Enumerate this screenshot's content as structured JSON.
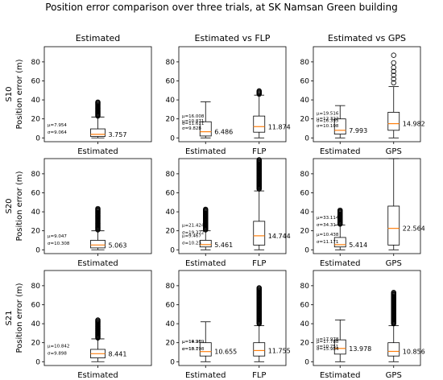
{
  "title": "Position error comparison over three trials, at SK Namsan Green building",
  "columns": [
    "Estimated",
    "Estimated vs FLP",
    "Estimated vs GPS"
  ],
  "rows": [
    "S10",
    "S20",
    "S21"
  ],
  "ylabel": "Position error (m)",
  "yticks": [
    0,
    20,
    40,
    60,
    80
  ],
  "colors": {
    "median": "#ff7f0e",
    "box": "#000000",
    "flier": "#000000"
  },
  "chart_data": [
    {
      "type": "box",
      "row": "S10",
      "panel": "Estimated",
      "ylim": [
        -4,
        96
      ],
      "boxes": [
        {
          "label": "Estimated",
          "q1": 1.5,
          "median": 3.757,
          "q3": 9.5,
          "whisker_low": 0,
          "whisker_high": 22,
          "fliers_dense": [
            23,
            38
          ],
          "fliers": [],
          "annotations": {
            "mu": "μ=7.954",
            "sigma": "σ=9.064",
            "median": "3.757"
          }
        }
      ]
    },
    {
      "type": "box",
      "row": "S10",
      "panel": "Estimated vs FLP",
      "ylim": [
        -4,
        96
      ],
      "boxes": [
        {
          "label": "Estimated",
          "q1": 2,
          "median": 6.486,
          "q3": 17,
          "whisker_low": 0,
          "whisker_high": 38,
          "fliers_dense": null,
          "fliers": [],
          "annotations": {
            "mu": "μ=10.871",
            "sigma": "σ=9.828",
            "median": "6.486"
          }
        },
        {
          "label": "FLP",
          "q1": 6,
          "median": 11.874,
          "q3": 23,
          "whisker_low": 0,
          "whisker_high": 45,
          "fliers_dense": [
            46,
            50
          ],
          "fliers": [],
          "annotations": {
            "mu": "μ=16.008",
            "sigma": "σ=11.611",
            "median": "11.874"
          }
        }
      ]
    },
    {
      "type": "box",
      "row": "S10",
      "panel": "Estimated vs GPS",
      "ylim": [
        -4,
        96
      ],
      "boxes": [
        {
          "label": "Estimated",
          "q1": 4,
          "median": 7.993,
          "q3": 20,
          "whisker_low": 0,
          "whisker_high": 34,
          "fliers_dense": null,
          "fliers": [],
          "annotations": {
            "mu": "μ=12.322",
            "sigma": "σ=10.108",
            "median": "7.993"
          }
        },
        {
          "label": "GPS",
          "q1": 8,
          "median": 14.982,
          "q3": 27,
          "whisker_low": 0,
          "whisker_high": 54,
          "fliers_dense": null,
          "fliers": [
            58,
            62,
            66,
            70,
            74,
            79,
            87
          ],
          "annotations": {
            "mu": "μ=19.516",
            "sigma": "σ=16.395",
            "median": "14.982"
          }
        }
      ]
    },
    {
      "type": "box",
      "row": "S20",
      "panel": "Estimated",
      "ylim": [
        -4,
        96
      ],
      "boxes": [
        {
          "label": "Estimated",
          "q1": 2,
          "median": 5.063,
          "q3": 10,
          "whisker_low": 0,
          "whisker_high": 20,
          "fliers_dense": [
            21,
            44
          ],
          "fliers": [],
          "annotations": {
            "mu": "μ=9.047",
            "sigma": "σ=10.308",
            "median": "5.063"
          }
        }
      ]
    },
    {
      "type": "box",
      "row": "S20",
      "panel": "Estimated vs FLP",
      "ylim": [
        -4,
        96
      ],
      "boxes": [
        {
          "label": "Estimated",
          "q1": 3,
          "median": 5.461,
          "q3": 10,
          "whisker_low": 0,
          "whisker_high": 20,
          "fliers_dense": [
            21,
            43
          ],
          "fliers": [],
          "annotations": {
            "mu": "μ=9.467",
            "sigma": "σ=10.23",
            "median": "5.461"
          }
        },
        {
          "label": "FLP",
          "q1": 5,
          "median": 14.744,
          "q3": 30,
          "whisker_low": 0,
          "whisker_high": 62,
          "fliers_dense": [
            64,
            95
          ],
          "fliers": [],
          "annotations": {
            "mu": "μ=21.424",
            "sigma": "σ=19.372",
            "median": "14.744"
          }
        }
      ]
    },
    {
      "type": "box",
      "row": "S20",
      "panel": "Estimated vs GPS",
      "ylim": [
        -4,
        96
      ],
      "boxes": [
        {
          "label": "Estimated",
          "q1": 3,
          "median": 5.414,
          "q3": 13,
          "whisker_low": 0,
          "whisker_high": 26,
          "fliers_dense": [
            27,
            42
          ],
          "fliers": [],
          "annotations": {
            "mu": "μ=10.438",
            "sigma": "σ=11.171",
            "median": "5.414"
          }
        },
        {
          "label": "GPS",
          "q1": 5,
          "median": 22.564,
          "q3": 46,
          "whisker_low": 0,
          "whisker_high": 96,
          "fliers_dense": null,
          "fliers": [],
          "annotations": {
            "mu": "μ=33.114",
            "sigma": "σ=34.31",
            "median": "22.564"
          }
        }
      ]
    },
    {
      "type": "box",
      "row": "S21",
      "panel": "Estimated",
      "ylim": [
        -4,
        96
      ],
      "boxes": [
        {
          "label": "Estimated",
          "q1": 4,
          "median": 8.441,
          "q3": 13,
          "whisker_low": 0,
          "whisker_high": 24,
          "fliers_dense": [
            25,
            44
          ],
          "fliers": [],
          "annotations": {
            "mu": "μ=10.842",
            "sigma": "σ=9.898",
            "median": "8.441"
          }
        }
      ]
    },
    {
      "type": "box",
      "row": "S21",
      "panel": "Estimated vs FLP",
      "ylim": [
        -4,
        96
      ],
      "boxes": [
        {
          "label": "Estimated",
          "q1": 6,
          "median": 10.655,
          "q3": 20,
          "whisker_low": 0,
          "whisker_high": 42,
          "fliers_dense": null,
          "fliers": [],
          "annotations": {
            "mu": "μ=14.969",
            "sigma": "σ=10.7",
            "median": "10.655"
          }
        },
        {
          "label": "FLP",
          "q1": 6,
          "median": 11.755,
          "q3": 20,
          "whisker_low": 0,
          "whisker_high": 38,
          "fliers_dense": [
            40,
            78
          ],
          "fliers": [],
          "annotations": {
            "mu": "μ=19.28",
            "sigma": "σ=18.198",
            "median": "11.755"
          }
        }
      ]
    },
    {
      "type": "box",
      "row": "S21",
      "panel": "Estimated vs GPS",
      "ylim": [
        -4,
        96
      ],
      "boxes": [
        {
          "label": "Estimated",
          "q1": 8,
          "median": 13.978,
          "q3": 23,
          "whisker_low": 0,
          "whisker_high": 44,
          "fliers_dense": null,
          "fliers": [],
          "annotations": {
            "mu": "μ=17.978",
            "sigma": "σ=10.751",
            "median": "13.978"
          }
        },
        {
          "label": "GPS",
          "q1": 6,
          "median": 10.856,
          "q3": 20,
          "whisker_low": 0,
          "whisker_high": 38,
          "fliers_dense": [
            40,
            73
          ],
          "fliers": [],
          "annotations": {
            "mu": "μ=17.788",
            "sigma": "σ=15.984",
            "median": "10.856"
          }
        }
      ]
    }
  ]
}
